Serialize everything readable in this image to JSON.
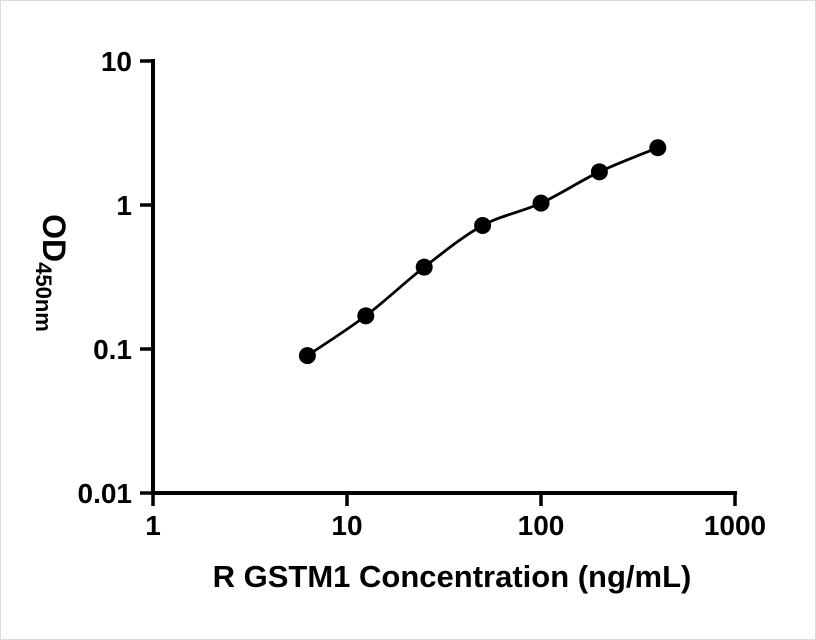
{
  "chart_data": {
    "type": "scatter",
    "title": "",
    "xlabel": "R GSTM1 Concentration (ng/mL)",
    "ylabel": "OD",
    "ylabel_subscript": "450nm",
    "xscale": "log",
    "yscale": "log",
    "xlim": [
      1,
      1000
    ],
    "ylim": [
      0.01,
      10
    ],
    "grid": "off",
    "legend": "none",
    "x_ticks": [
      {
        "value": 1,
        "label": "1"
      },
      {
        "value": 10,
        "label": "10"
      },
      {
        "value": 100,
        "label": "100"
      },
      {
        "value": 1000,
        "label": "1000"
      }
    ],
    "y_ticks": [
      {
        "value": 10,
        "label": "10"
      },
      {
        "value": 1,
        "label": "1"
      },
      {
        "value": 0.1,
        "label": "0.1"
      },
      {
        "value": 0.01,
        "label": "0.01"
      }
    ],
    "points": [
      {
        "x": 6.25,
        "y": 0.09
      },
      {
        "x": 12.5,
        "y": 0.17
      },
      {
        "x": 25,
        "y": 0.37
      },
      {
        "x": 50,
        "y": 0.72
      },
      {
        "x": 100,
        "y": 1.03
      },
      {
        "x": 200,
        "y": 1.7
      },
      {
        "x": 400,
        "y": 2.5
      }
    ],
    "curve": "smooth",
    "marker_color": "#000000",
    "line_color": "#000000",
    "axis_color": "#000000",
    "background_color": "#ffffff"
  }
}
